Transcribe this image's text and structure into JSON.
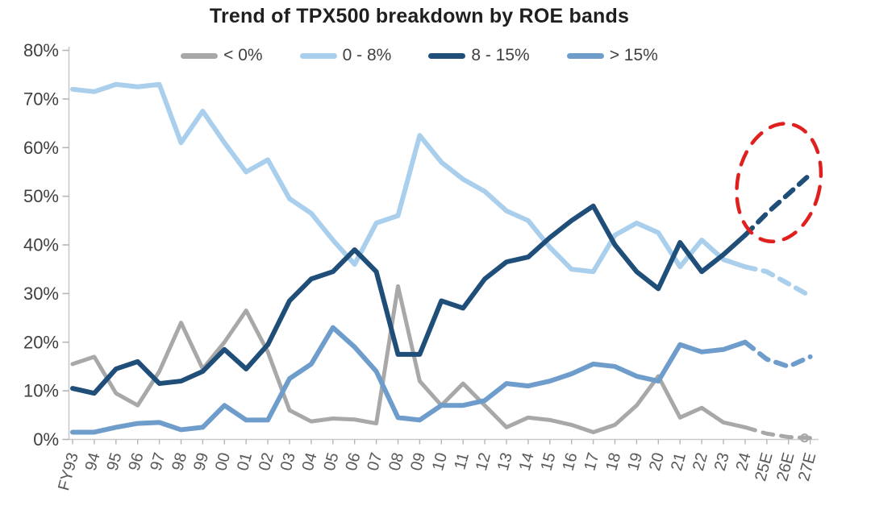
{
  "page": {
    "background": "#ffffff"
  },
  "chart_data": {
    "type": "line",
    "title": "Trend of TPX500 breakdown by ROE bands",
    "categories": [
      "FY93",
      "94",
      "95",
      "96",
      "97",
      "98",
      "99",
      "00",
      "01",
      "02",
      "03",
      "04",
      "05",
      "06",
      "07",
      "08",
      "09",
      "10",
      "11",
      "12",
      "13",
      "14",
      "15",
      "16",
      "17",
      "18",
      "19",
      "20",
      "21",
      "22",
      "23",
      "24",
      "25E",
      "26E",
      "27E"
    ],
    "series": [
      {
        "name": "< 0%",
        "color": "#a8a8a8",
        "values": [
          15.5,
          17,
          9.5,
          7,
          14,
          24,
          14.5,
          20,
          26.5,
          18,
          6,
          3.7,
          4.3,
          4.1,
          3.3,
          31.5,
          12,
          7,
          11.5,
          7,
          2.5,
          4.5,
          4,
          3,
          1.5,
          3,
          7,
          13,
          4.5,
          6.5,
          3.5,
          2.5,
          1.2,
          0.5,
          0.3
        ]
      },
      {
        "name": "0 - 8%",
        "color": "#a9cfec",
        "values": [
          72,
          71.5,
          73,
          72.5,
          73,
          61,
          67.5,
          61,
          55,
          57.5,
          49.5,
          46.5,
          41,
          36,
          44.5,
          46,
          62.5,
          57,
          53.5,
          51,
          47,
          45,
          39.5,
          35,
          34.5,
          42,
          44.5,
          42.5,
          35.5,
          41,
          37,
          35.5,
          34.5,
          32,
          29.5
        ]
      },
      {
        "name": "8 - 15%",
        "color": "#1f4e79",
        "values": [
          10.5,
          9.5,
          14.5,
          16,
          11.5,
          12,
          14,
          18.5,
          14.5,
          19.5,
          28.5,
          33,
          34.5,
          39,
          34.5,
          17.5,
          17.5,
          28.5,
          27,
          33,
          36.5,
          37.5,
          41.5,
          45,
          48,
          40,
          34.5,
          31,
          40.5,
          34.5,
          38,
          42,
          46.5,
          50.5,
          54.5
        ]
      },
      {
        "name": "> 15%",
        "color": "#6e9dcc",
        "values": [
          1.5,
          1.5,
          2.5,
          3.3,
          3.5,
          2,
          2.5,
          7,
          4,
          4,
          12.5,
          15.5,
          23,
          19,
          14,
          4.5,
          4,
          7,
          7,
          8,
          11.5,
          11,
          12,
          13.5,
          15.5,
          15,
          13,
          12,
          19.5,
          18,
          18.5,
          20,
          16.5,
          15,
          17
        ]
      }
    ],
    "ylim": [
      0,
      80
    ],
    "ytick_step": 10,
    "ytick_labels": [
      "0%",
      "10%",
      "20%",
      "30%",
      "40%",
      "50%",
      "60%",
      "70%",
      "80%"
    ],
    "grid": false,
    "legend_position": "top",
    "forecast_start_index": 31,
    "forecast_style": "dashed",
    "annotations": [
      {
        "type": "dashed-ellipse",
        "color": "#e0201e",
        "target_series": "8 - 15%",
        "target_categories": [
          "25E",
          "26E",
          "27E"
        ],
        "meaning": "highlights projected rise of 8 - 15% band"
      },
      {
        "type": "end-marker-circle",
        "color": "#a8a8a8",
        "target_series": "< 0%",
        "target_category": "27E"
      }
    ]
  }
}
